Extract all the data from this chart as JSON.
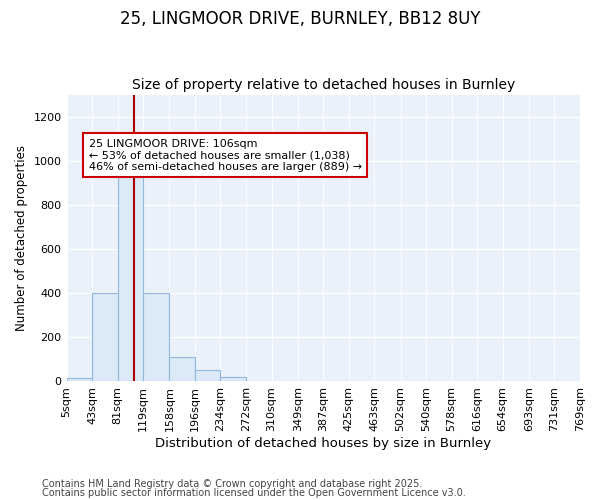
{
  "title1": "25, LINGMOOR DRIVE, BURNLEY, BB12 8UY",
  "title2": "Size of property relative to detached houses in Burnley",
  "xlabel": "Distribution of detached houses by size in Burnley",
  "ylabel": "Number of detached properties",
  "bin_edges": [
    5,
    43,
    81,
    119,
    158,
    196,
    234,
    272,
    310,
    349,
    387,
    425,
    463,
    502,
    540,
    578,
    616,
    654,
    693,
    731,
    769
  ],
  "bin_labels": [
    "5sqm",
    "43sqm",
    "81sqm",
    "119sqm",
    "158sqm",
    "196sqm",
    "234sqm",
    "272sqm",
    "310sqm",
    "349sqm",
    "387sqm",
    "425sqm",
    "463sqm",
    "502sqm",
    "540sqm",
    "578sqm",
    "616sqm",
    "654sqm",
    "693sqm",
    "731sqm",
    "769sqm"
  ],
  "bar_heights": [
    15,
    400,
    960,
    400,
    110,
    50,
    20,
    0,
    0,
    0,
    0,
    0,
    0,
    0,
    0,
    0,
    0,
    0,
    0,
    0
  ],
  "bar_color": "#dce9f7",
  "bar_edgecolor": "#93b8de",
  "bg_color": "#eaf1fb",
  "fig_color": "#ffffff",
  "vline_x": 106,
  "vline_color": "#aa0000",
  "annotation_text": "25 LINGMOOR DRIVE: 106sqm\n← 53% of detached houses are smaller (1,038)\n46% of semi-detached houses are larger (889) →",
  "annotation_box_color": "#cc0000",
  "annotation_text_color": "#000000",
  "ylim": [
    0,
    1300
  ],
  "yticks": [
    0,
    200,
    400,
    600,
    800,
    1000,
    1200
  ],
  "footer1": "Contains HM Land Registry data © Crown copyright and database right 2025.",
  "footer2": "Contains public sector information licensed under the Open Government Licence v3.0.",
  "title1_fontsize": 12,
  "title2_fontsize": 10,
  "xlabel_fontsize": 9.5,
  "ylabel_fontsize": 8.5,
  "tick_fontsize": 8,
  "footer_fontsize": 7,
  "annot_fontsize": 8
}
